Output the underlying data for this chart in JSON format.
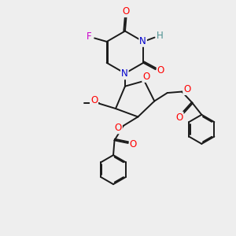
{
  "bg_color": "#eeeeee",
  "bond_color": "#1a1a1a",
  "bond_width": 1.4,
  "atom_colors": {
    "O": "#ff0000",
    "N": "#0000cc",
    "F": "#cc00cc",
    "H": "#4a9090",
    "C": "#1a1a1a"
  },
  "font_size": 8.5,
  "figsize": [
    3.0,
    3.0
  ],
  "dpi": 100,
  "xlim": [
    0,
    10
  ],
  "ylim": [
    0,
    10
  ]
}
